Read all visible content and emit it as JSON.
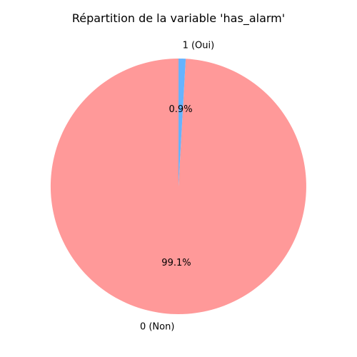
{
  "chart_data": {
    "type": "pie",
    "title": "Répartition de la variable 'has_alarm'",
    "start_angle_deg": 90,
    "direction": "counterclockwise",
    "slices": [
      {
        "label": "0 (Non)",
        "value": 99.1,
        "pct_label": "99.1%",
        "color": "#ff9999"
      },
      {
        "label": "1 (Oui)",
        "value": 0.9,
        "pct_label": "0.9%",
        "color": "#66b3ff"
      }
    ]
  }
}
